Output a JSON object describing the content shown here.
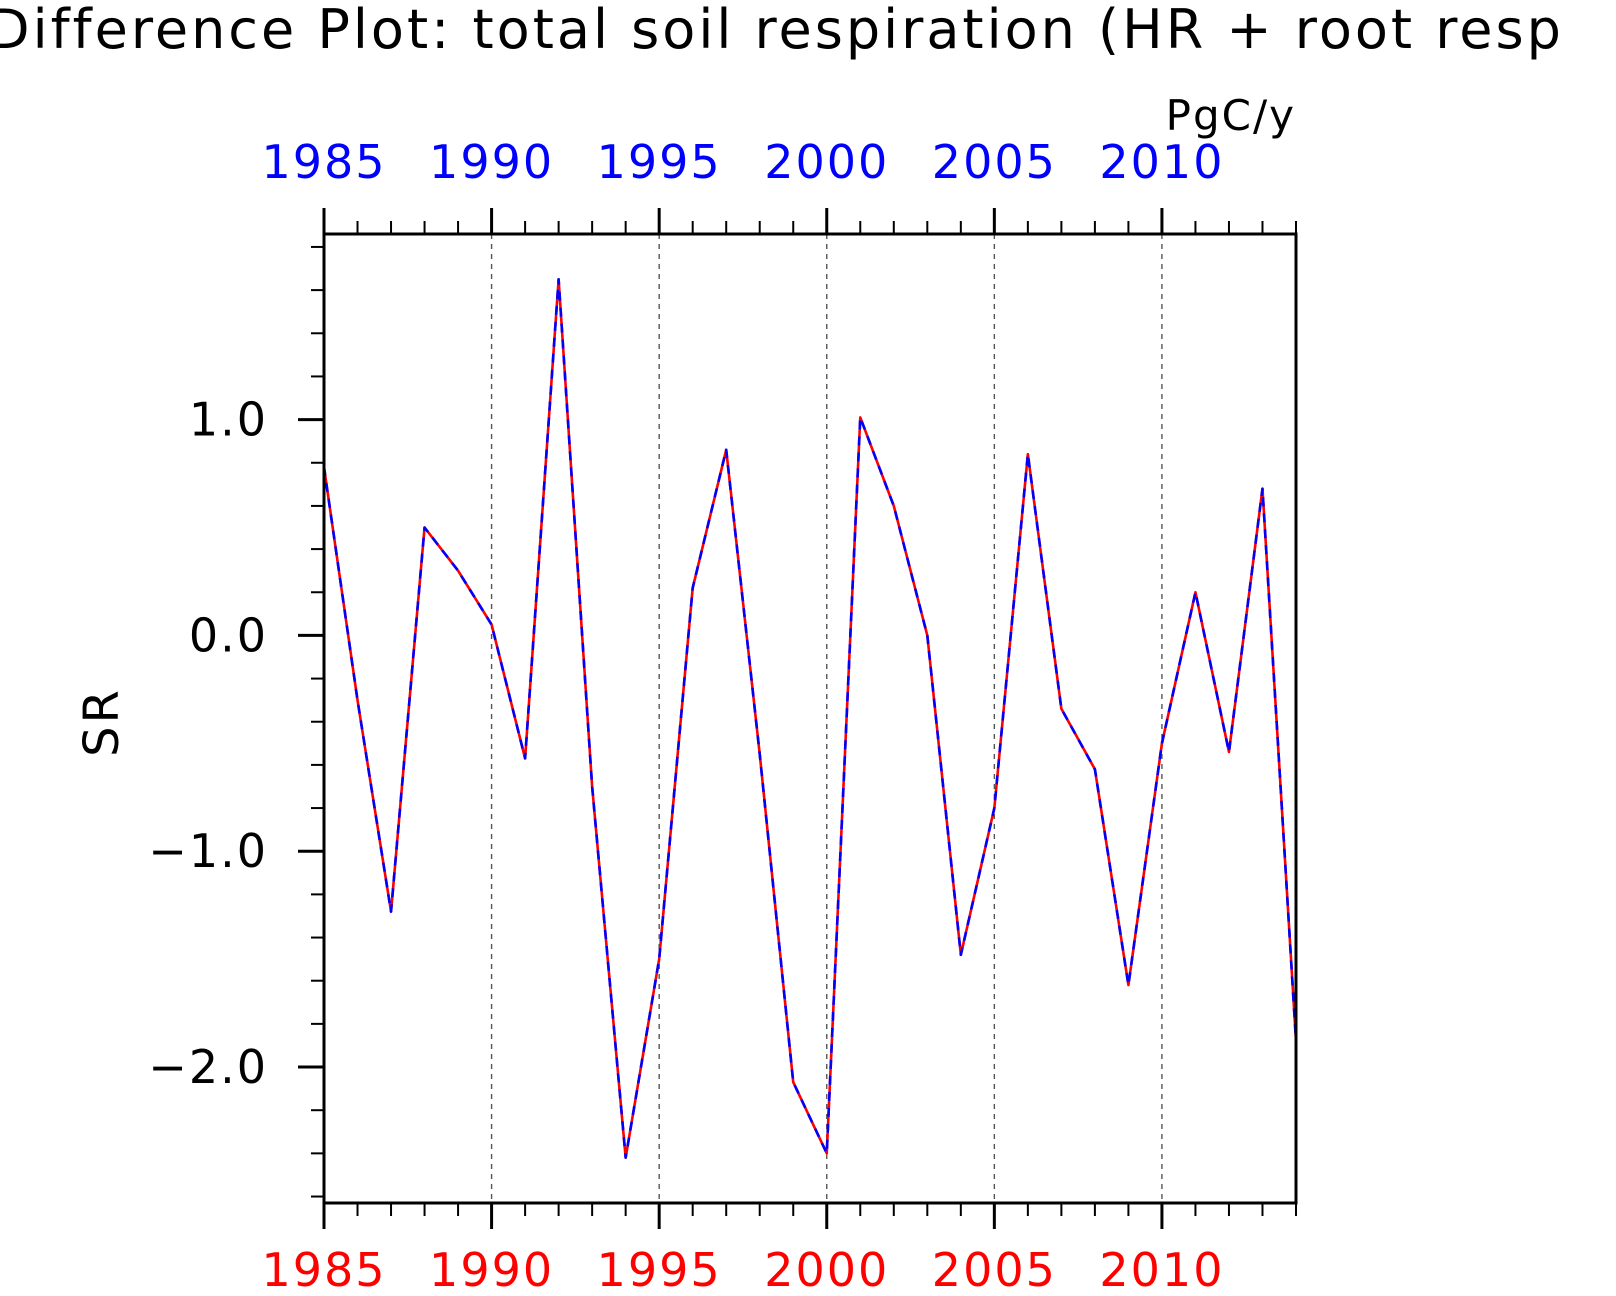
{
  "chart_data": {
    "type": "line",
    "title": "Difference Plot: total soil respiration (HR + root resp",
    "units": "PgC/y",
    "ylabel": "SR",
    "xlabel": "",
    "xlim": [
      1985,
      2014
    ],
    "ylim": [
      -2.63,
      1.86
    ],
    "x_ticks": [
      1985,
      1990,
      1995,
      2000,
      2005,
      2010
    ],
    "x_tick_labels": [
      "1985",
      "1990",
      "1995",
      "2000",
      "2005",
      "2010"
    ],
    "y_ticks": [
      -2.0,
      -1.0,
      0.0,
      1.0
    ],
    "y_tick_labels": [
      "−2.0",
      "−1.0",
      "0.0",
      "1.0"
    ],
    "grid": "vertical dashed at major x ticks",
    "legend": "none",
    "colors": {
      "series_solid": "#ff0000",
      "series_dashed": "#0000ff",
      "bottom_axis_labels": "#ff0000",
      "top_axis_labels": "#0000ff"
    },
    "x": [
      1985,
      1986,
      1987,
      1988,
      1989,
      1990,
      1991,
      1992,
      1993,
      1994,
      1995,
      1996,
      1997,
      1998,
      1999,
      2000,
      2001,
      2002,
      2003,
      2004,
      2005,
      2006,
      2007,
      2008,
      2009,
      2010,
      2011,
      2012,
      2013,
      2014
    ],
    "series": [
      {
        "values": [
          0.78,
          -0.3,
          -1.28,
          0.5,
          0.3,
          0.05,
          -0.57,
          1.65,
          -0.7,
          -2.42,
          -1.5,
          0.22,
          0.86,
          -0.55,
          -2.07,
          -2.4,
          1.01,
          0.6,
          0.0,
          -1.48,
          -0.8,
          0.84,
          -0.34,
          -0.62,
          -1.62,
          -0.5,
          0.2,
          -0.54,
          0.68,
          -1.88
        ]
      },
      {
        "values": [
          0.78,
          -0.3,
          -1.28,
          0.5,
          0.3,
          0.05,
          -0.57,
          1.65,
          -0.7,
          -2.42,
          -1.5,
          0.22,
          0.86,
          -0.55,
          -2.07,
          -2.4,
          1.01,
          0.6,
          0.0,
          -1.48,
          -0.8,
          0.84,
          -0.34,
          -0.62,
          -1.62,
          -0.5,
          0.2,
          -0.54,
          0.68,
          -1.88
        ]
      }
    ]
  }
}
